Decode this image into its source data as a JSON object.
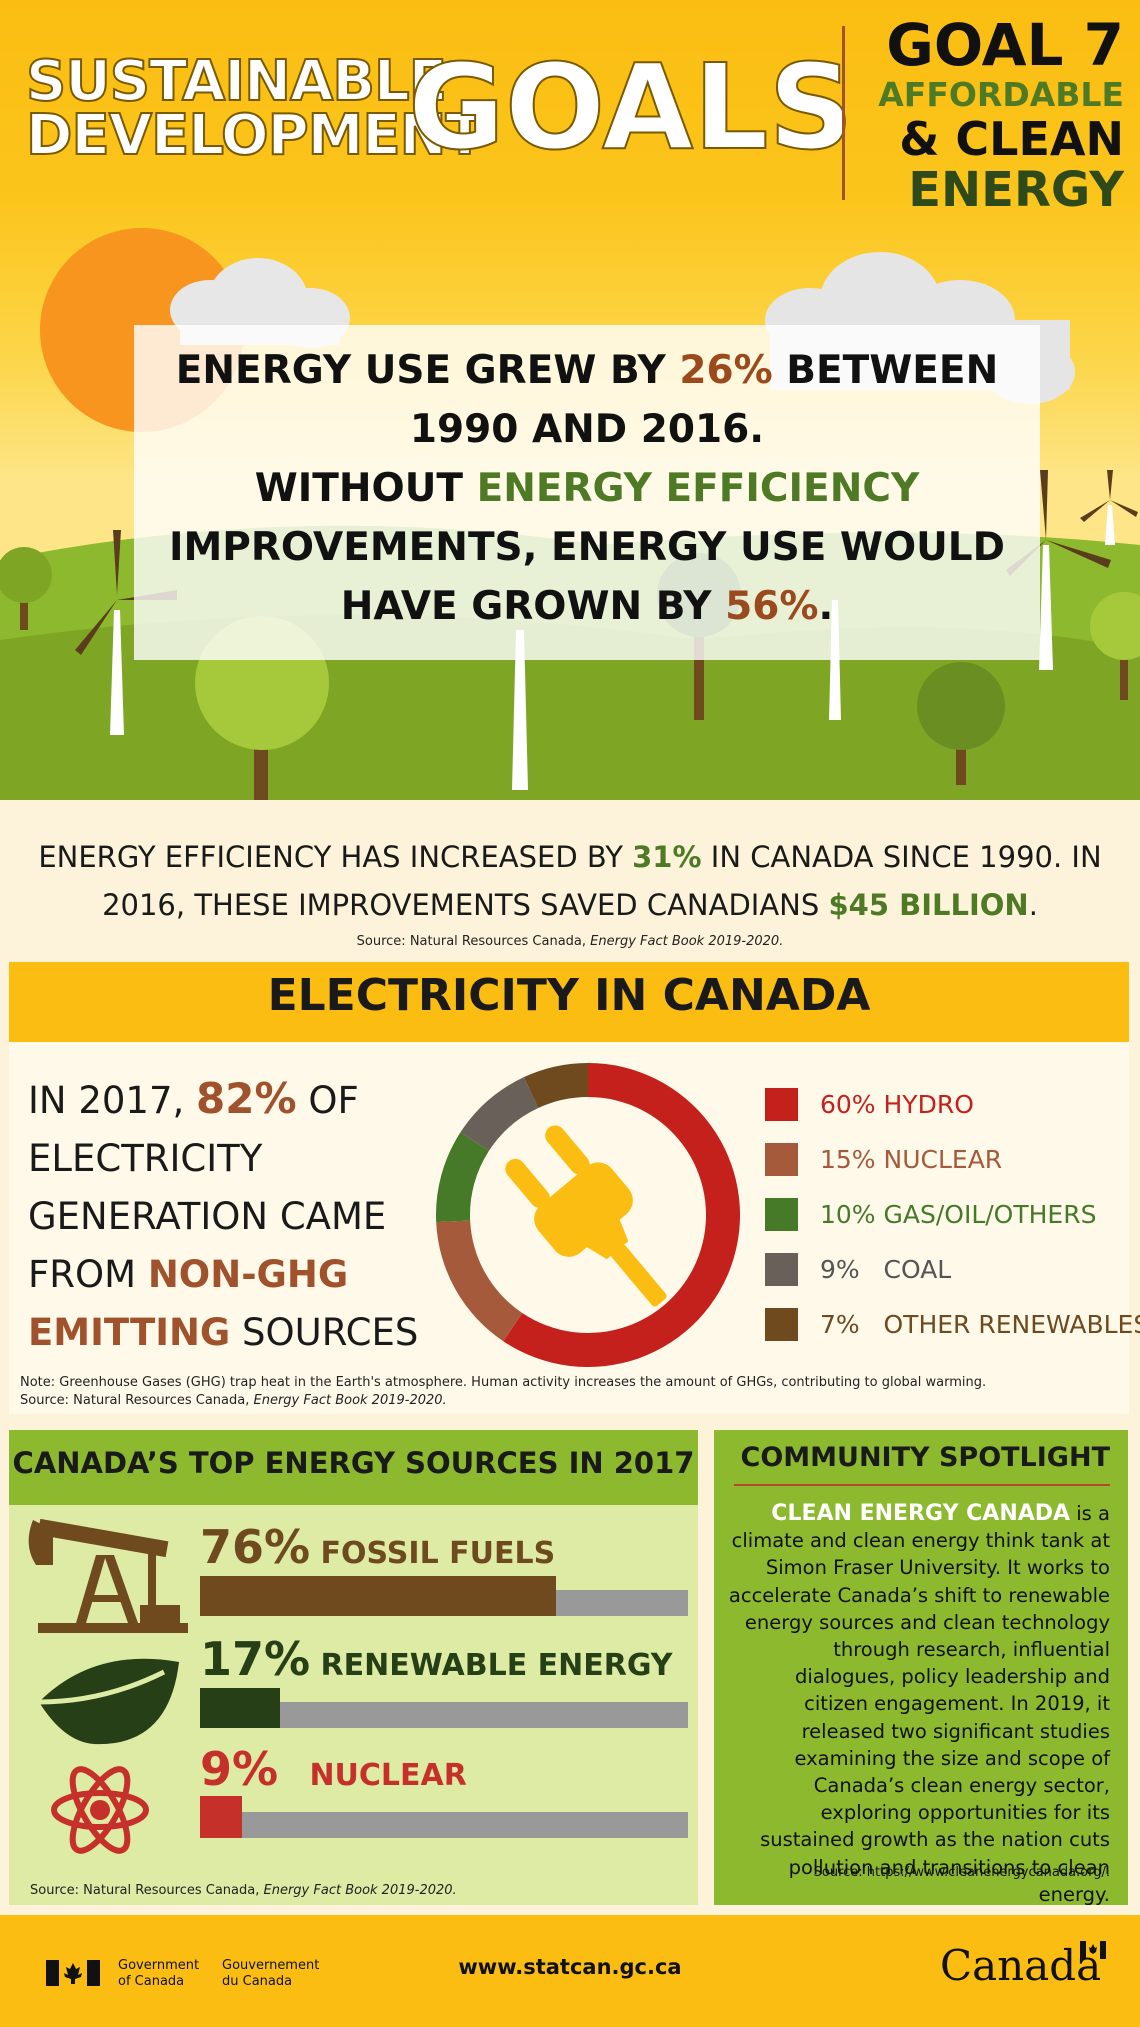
{
  "header": {
    "sdg_line1": "SUSTAINABLE",
    "sdg_line2": "DEVELOPMENT",
    "goals_word": "GOALS",
    "goal_number": "GOAL 7",
    "goal_line2": "AFFORDABLE",
    "goal_line3": "& CLEAN",
    "goal_line4": "ENERGY"
  },
  "intro": {
    "line1_a": "ENERGY USE GREW BY ",
    "line1_pct": "26%",
    "line1_b": " BETWEEN",
    "line2": "1990 AND 2016.",
    "line3_a": "WITHOUT ",
    "line3_green": "ENERGY EFFICIENCY",
    "line4": "IMPROVEMENTS, ENERGY USE WOULD",
    "line5_a": "HAVE GROWN BY ",
    "line5_pct": "56%",
    "line5_b": "."
  },
  "efficiency": {
    "line1_a": "ENERGY EFFICIENCY HAS INCREASED BY ",
    "line1_pct": "31%",
    "line1_b": " IN CANADA SINCE 1990. IN",
    "line2_a": "2016, THESE IMPROVEMENTS SAVED CANADIANS ",
    "line2_amount": "$45 BILLION",
    "line2_b": ".",
    "source_a": "Source: Natural Resources Canada, ",
    "source_b": "Energy Fact Book 2019-2020."
  },
  "electricity": {
    "title": "ELECTRICITY IN CANADA",
    "text_a": "IN 2017, ",
    "text_pct": "82%",
    "text_b": " OF",
    "text_line2": "ELECTRICITY",
    "text_line3": "GENERATION CAME",
    "text_line4_a": "FROM ",
    "text_line4_b": "NON-GHG",
    "text_line5_a": "EMITTING",
    "text_line5_b": " SOURCES",
    "note": "Note: Greenhouse Gases (GHG) trap heat in the Earth's atmosphere. Human activity increases the amount of GHGs, contributing to global warming.",
    "source_a": "Source: Natural Resources Canada, ",
    "source_b": "Energy Fact Book 2019-2020.",
    "donut_icon": "electric-plug-icon"
  },
  "chart_data": {
    "type": "pie",
    "categories": [
      "HYDRO",
      "NUCLEAR",
      "GAS/OIL/OTHERS",
      "COAL",
      "OTHER RENEWABLES"
    ],
    "values": [
      60,
      15,
      10,
      9,
      7
    ],
    "labels": [
      "60% HYDRO",
      "15% NUCLEAR",
      "10% GAS/OIL/OTHERS",
      "9%   COAL",
      "7%   OTHER RENEWABLES"
    ],
    "colors": [
      "#c5211c",
      "#a55a3c",
      "#467a29",
      "#696059",
      "#6e4a1e"
    ],
    "legend_position": "right"
  },
  "top_sources": {
    "title": "CANADA’S TOP ENERGY SOURCES IN 2017",
    "items": [
      {
        "pct": "76%",
        "label": "FOSSIL FUELS",
        "value": 76,
        "color": "#6e4a1e",
        "icon": "oil-pump-icon"
      },
      {
        "pct": "17%",
        "label": "RENEWABLE ENERGY",
        "value": 17,
        "color": "#263f17",
        "icon": "leaf-icon"
      },
      {
        "pct": "9%",
        "label": "NUCLEAR",
        "value": 9,
        "color": "#c5302a",
        "icon": "atom-icon"
      }
    ],
    "source_a": "Source: Natural Resources Canada, ",
    "source_b": "Energy Fact Book 2019-2020."
  },
  "community": {
    "title": "COMMUNITY SPOTLIGHT",
    "org_name": "CLEAN ENERGY CANADA",
    "body": " is a climate and clean energy think tank at Simon Fraser University. It works to accelerate Canada’s shift to renewable energy sources and clean technology through research, influential dialogues, policy leadership and citizen engagement. In 2019, it released two significant studies examining the size and scope of Canada’s clean energy sector, exploring opportunities for its sustained growth as the nation cuts pollution and transitions to clean energy.",
    "source": "Source: https://www.cleanenergycanada.org/."
  },
  "footer": {
    "gov_en_1": "Government",
    "gov_en_2": "of Canada",
    "gov_fr_1": "Gouvernement",
    "gov_fr_2": "du Canada",
    "url": "www.statcan.gc.ca",
    "wordmark": "Canada"
  }
}
